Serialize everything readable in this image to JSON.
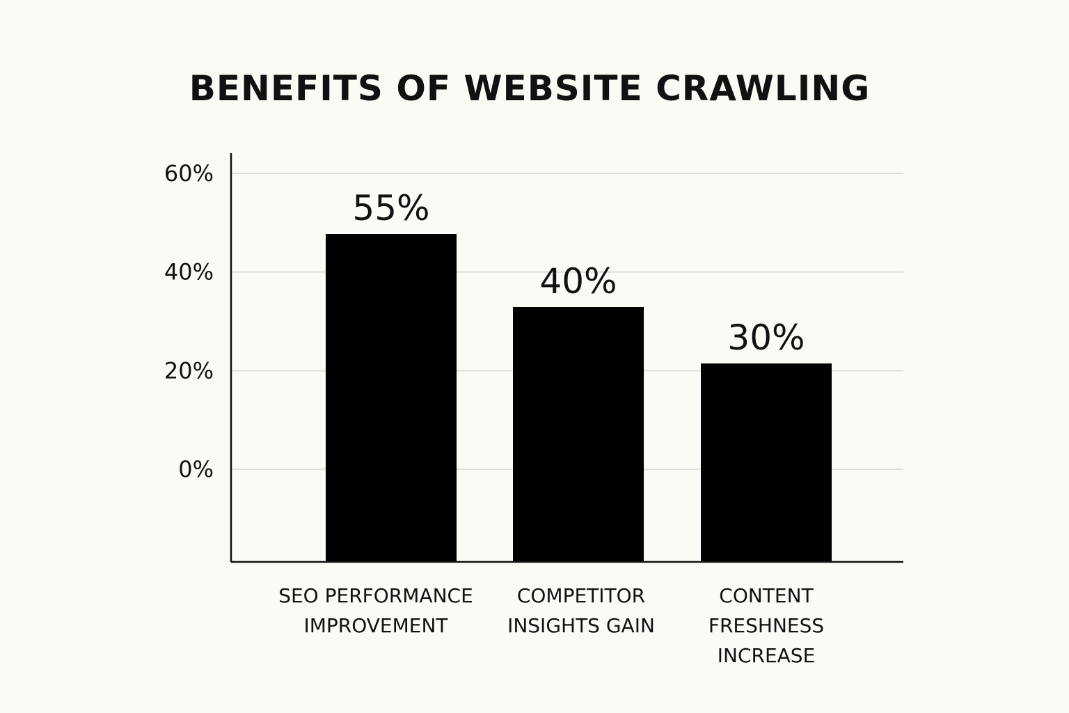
{
  "chart_data": {
    "type": "bar",
    "title": "BENEFITS OF WEBSITE CRAWLING",
    "categories": [
      "SEO PERFORMANCE IMPROVEMENT",
      "COMPETITOR INSIGHTS GAIN",
      "CONTENT FRESHNESS INCREASE"
    ],
    "category_lines": [
      [
        "SEO PERFORMANCE",
        "IMPROVEMENT"
      ],
      [
        "COMPETITOR",
        "INSIGHTS GAIN"
      ],
      [
        "CONTENT",
        "FRESHNESS",
        "INCREASE"
      ]
    ],
    "values": [
      55,
      40,
      30
    ],
    "value_labels": [
      "55%",
      "40%",
      "30%"
    ],
    "yticks": [
      0,
      20,
      40,
      60
    ],
    "ytick_labels": [
      "0%",
      "20%",
      "40%",
      "60%"
    ],
    "ylim": [
      0,
      60
    ],
    "xlabel": "",
    "ylabel": "",
    "grid": true,
    "colors": {
      "bar": "#000000",
      "grid": "#dddddd",
      "axis": "#111111",
      "background": "#fcfaf5"
    }
  }
}
